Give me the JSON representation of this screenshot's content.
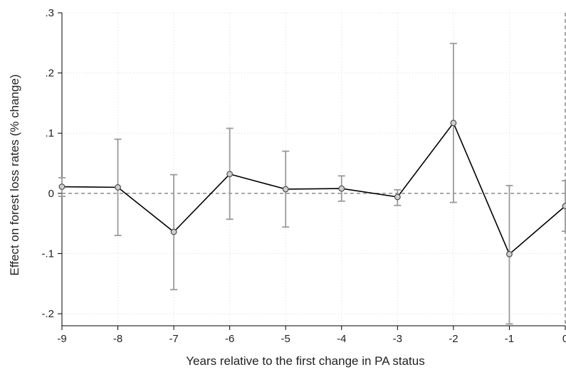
{
  "chart_data": {
    "type": "line",
    "title": "",
    "xlabel": "Years relative to the first change in PA status",
    "ylabel": "Effect on forest loss rates (% change)",
    "x": [
      -9,
      -8,
      -7,
      -6,
      -5,
      -4,
      -3,
      -2,
      -1,
      0
    ],
    "x_tick_labels": [
      "-9",
      "-8",
      "-7",
      "-6",
      "-5",
      "-4",
      "-3",
      "-2",
      "-1",
      "0"
    ],
    "y_ticks": [
      -0.2,
      -0.1,
      0,
      0.1,
      0.2,
      0.3
    ],
    "y_tick_labels": [
      "-.2",
      "-.1",
      "0",
      ".1",
      ".2",
      ".3"
    ],
    "xlim": [
      -9,
      0
    ],
    "ylim": [
      -0.22,
      0.3
    ],
    "grid": true,
    "reference_line_y": 0,
    "reference_line_x": 0,
    "series": [
      {
        "estimate": [
          0.011,
          0.01,
          -0.064,
          0.032,
          0.007,
          0.008,
          -0.006,
          0.117,
          -0.101,
          -0.021
        ],
        "ci_lower": [
          -0.005,
          -0.07,
          -0.16,
          -0.043,
          -0.056,
          -0.013,
          -0.02,
          -0.015,
          -0.217,
          -0.063
        ],
        "ci_upper": [
          0.026,
          0.09,
          0.031,
          0.108,
          0.07,
          0.029,
          0.006,
          0.249,
          0.013,
          0.021
        ]
      }
    ],
    "colors": {
      "line": "#000000",
      "marker": "#555555",
      "error_bar": "#9a9a9a",
      "grid": "#d9d9d9",
      "reference": "#777777",
      "axis": "#000000"
    }
  }
}
